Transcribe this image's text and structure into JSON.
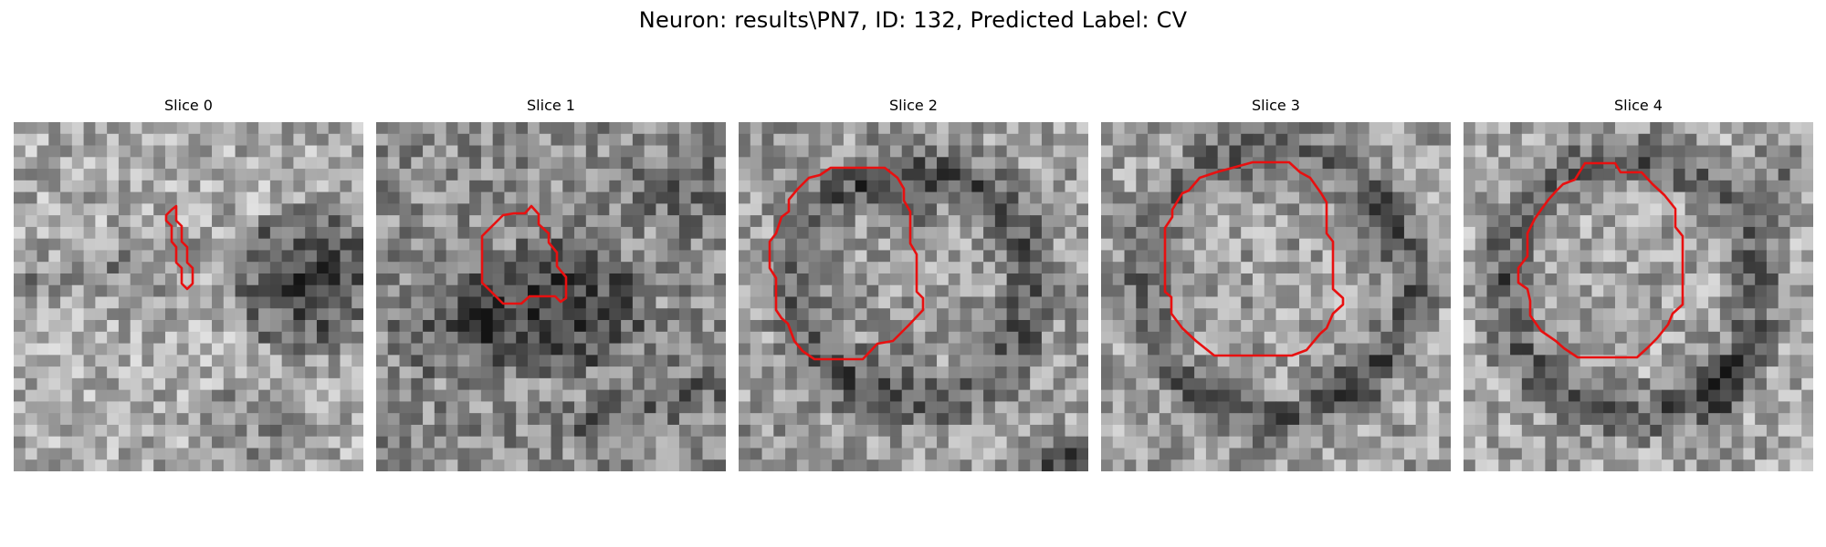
{
  "figure": {
    "title": "Neuron: results\\PN7, ID: 132, Predicted Label: CV"
  },
  "panels": [
    {
      "title": "Slice 0"
    },
    {
      "title": "Slice 1"
    },
    {
      "title": "Slice 2"
    },
    {
      "title": "Slice 3"
    },
    {
      "title": "Slice 4"
    }
  ],
  "colors": {
    "contour": "#e81010",
    "background": "#ffffff"
  }
}
